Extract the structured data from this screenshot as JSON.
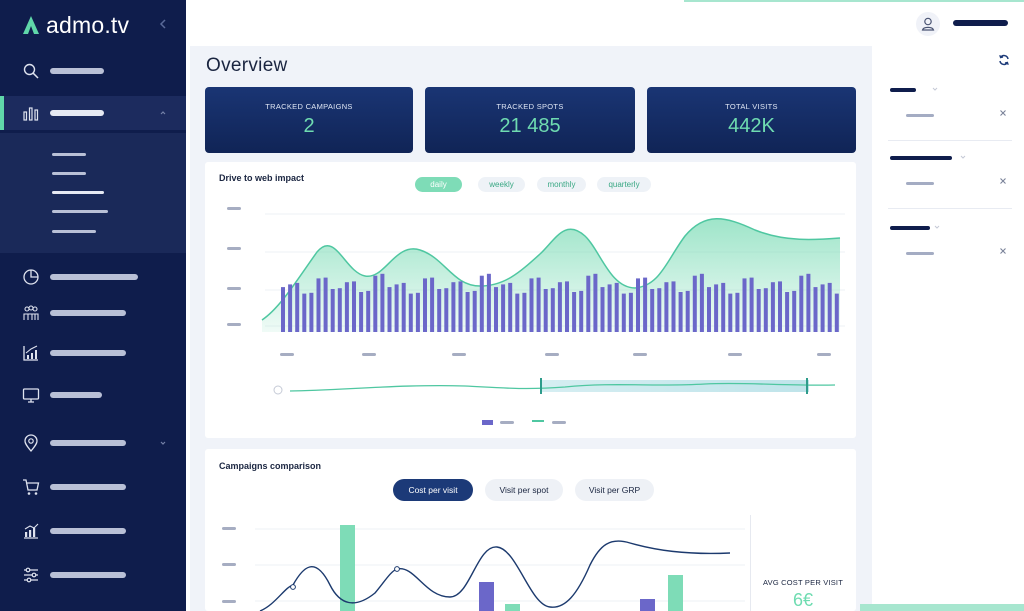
{
  "app": {
    "logo_text": "admo.tv"
  },
  "overview": {
    "title": "Overview",
    "kpis": [
      {
        "label": "TRACKED CAMPAIGNS",
        "value": "2"
      },
      {
        "label": "TRACKED SPOTS",
        "value": "21 485"
      },
      {
        "label": "TOTAL VISITS",
        "value": "442K"
      }
    ]
  },
  "drive_to_web": {
    "title": "Drive to web impact",
    "periods": [
      "daily",
      "weekly",
      "monthly",
      "quarterly"
    ],
    "selected_period": "daily"
  },
  "campaigns_comparison": {
    "title": "Campaigns comparison",
    "metrics": [
      "Cost per visit",
      "Visit per spot",
      "Visit per GRP"
    ],
    "selected_metric": "Cost per visit",
    "avg_label": "AVG COST PER VISIT",
    "avg_value": "6€"
  },
  "icons": {
    "sidebar": [
      "search-icon",
      "bar-chart-icon",
      "pie-chart-icon",
      "audience-icon",
      "growth-chart-icon",
      "monitor-icon",
      "location-target-icon",
      "cart-icon",
      "analytics-icon",
      "sliders-icon"
    ],
    "topbar": [
      "user-icon"
    ],
    "panel": [
      "refresh-icon",
      "close-icon"
    ]
  },
  "colors": {
    "sidebar": "#0f1d4c",
    "accent": "#5fd7a9",
    "kpi_value": "#6fdcb1",
    "bars": "#6b67c9",
    "line": "#4fc7a1"
  }
}
